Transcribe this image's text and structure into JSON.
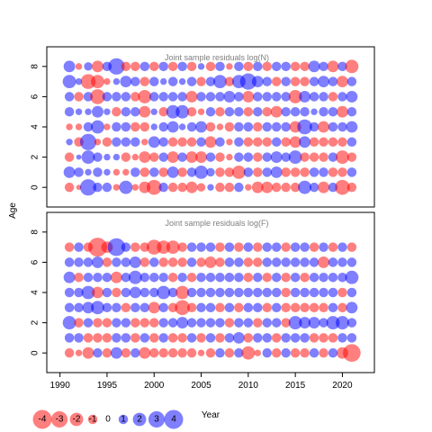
{
  "chart_data": {
    "type": "scatter",
    "subtype": "bubble",
    "xlabel": "Year",
    "ylabel": "Age",
    "xlim": [
      1988.6,
      2023.4
    ],
    "ylim": [
      -1.3,
      9.3
    ],
    "x_ticks": [
      "1990",
      "1995",
      "2000",
      "2005",
      "2010",
      "2015",
      "2020"
    ],
    "y_ticks": [
      "0",
      "2",
      "4",
      "6",
      "8"
    ],
    "years": [
      1991,
      1992,
      1993,
      1994,
      1995,
      1996,
      1997,
      1998,
      1999,
      2000,
      2001,
      2002,
      2003,
      2004,
      2005,
      2006,
      2007,
      2008,
      2009,
      2010,
      2011,
      2012,
      2013,
      2014,
      2015,
      2016,
      2017,
      2018,
      2019,
      2020,
      2021
    ],
    "colors": {
      "positive": "#0000ff",
      "negative": "#ff0000",
      "fill_alpha": 0.5
    },
    "panels": [
      {
        "title": "Joint sample residuals log(N)",
        "ages": [
          0,
          1,
          2,
          3,
          4,
          5,
          6,
          7,
          8
        ],
        "residuals": [
          [
            -1.0,
            1.5,
            -1.0,
            0.5,
            -0.5,
            1.0,
            1.0,
            2.0,
            1.5
          ],
          [
            -0.3,
            1.0,
            0.3,
            -1.0,
            -0.5,
            0.5,
            -1.0,
            0.5,
            -0.5
          ],
          [
            3.0,
            0.5,
            2.0,
            3.0,
            1.0,
            0.5,
            1.0,
            -2.5,
            0.8
          ],
          [
            1.0,
            1.0,
            1.0,
            -0.5,
            2.0,
            1.5,
            -2.5,
            -2.0,
            -1.5
          ],
          [
            1.0,
            0.5,
            0.5,
            -1.0,
            -0.5,
            0.5,
            1.0,
            -0.5,
            1.0
          ],
          [
            -0.5,
            -0.5,
            0.5,
            1.0,
            1.0,
            -1.0,
            1.0,
            0.5,
            3.0
          ],
          [
            2.0,
            -0.5,
            -1.0,
            1.0,
            1.0,
            1.0,
            1.0,
            1.5,
            -1.0
          ],
          [
            -0.5,
            1.0,
            -0.5,
            1.0,
            -1.0,
            1.0,
            -1.0,
            1.0,
            -1.0
          ],
          [
            -1.5,
            -1.0,
            -1.5,
            -0.5,
            -1.0,
            -1.5,
            -2.0,
            -1.0,
            1.0
          ],
          [
            -2.5,
            1.0,
            -1.0,
            1.5,
            0.5,
            0.5,
            1.0,
            1.0,
            -1.0
          ],
          [
            1.0,
            -1.0,
            1.0,
            1.0,
            1.0,
            -1.0,
            1.0,
            0.5,
            1.0
          ],
          [
            -1.0,
            1.5,
            -1.5,
            -1.0,
            1.5,
            2.0,
            1.0,
            1.0,
            -1.0
          ],
          [
            -1.0,
            -1.0,
            1.0,
            -1.0,
            0.5,
            2.0,
            1.0,
            0.5,
            1.0
          ],
          [
            -1.5,
            1.0,
            -1.5,
            -1.0,
            1.0,
            -1.0,
            -1.5,
            1.0,
            -1.0
          ],
          [
            -0.8,
            2.0,
            -1.5,
            1.0,
            1.5,
            -0.5,
            1.0,
            -1.0,
            0.5
          ],
          [
            0.5,
            0.8,
            1.0,
            -1.5,
            -1.0,
            1.0,
            1.0,
            1.0,
            -1.0
          ],
          [
            -1.0,
            -1.0,
            -1.0,
            1.0,
            -0.5,
            -1.0,
            1.0,
            2.0,
            1.0
          ],
          [
            -1.0,
            -1.0,
            -0.5,
            -0.5,
            -1.0,
            1.0,
            1.5,
            -1.0,
            -0.5
          ],
          [
            1.0,
            -2.0,
            1.0,
            1.0,
            1.0,
            1.0,
            1.0,
            2.0,
            1.0
          ],
          [
            -0.5,
            1.0,
            1.0,
            -1.0,
            1.0,
            -1.0,
            -1.5,
            3.0,
            -1.0
          ],
          [
            -1.5,
            -1.0,
            -1.0,
            -1.0,
            -1.0,
            1.0,
            1.0,
            1.5,
            1.0
          ],
          [
            -1.5,
            1.0,
            1.0,
            -1.0,
            1.0,
            -1.0,
            1.0,
            1.0,
            -1.0
          ],
          [
            -1.0,
            1.5,
            1.5,
            1.0,
            1.0,
            -1.5,
            1.0,
            -1.0,
            1.0
          ],
          [
            -1.0,
            -1.0,
            1.0,
            -1.0,
            1.0,
            1.0,
            1.0,
            1.0,
            1.0
          ],
          [
            -1.0,
            -1.0,
            2.0,
            -1.5,
            -1.5,
            1.0,
            -2.0,
            -1.0,
            -1.0
          ],
          [
            2.0,
            -1.0,
            -1.0,
            1.5,
            2.5,
            1.0,
            1.5,
            -1.0,
            -1.0
          ],
          [
            1.0,
            1.0,
            -1.0,
            -1.0,
            1.0,
            0.5,
            1.0,
            1.0,
            1.5
          ],
          [
            -1.5,
            1.0,
            -1.0,
            -1.0,
            -1.5,
            1.0,
            1.0,
            1.5,
            1.0
          ],
          [
            1.0,
            -1.0,
            1.0,
            -1.0,
            1.0,
            1.0,
            -1.0,
            1.0,
            -1.5
          ],
          [
            -2.5,
            -1.0,
            -2.0,
            -1.0,
            1.0,
            -1.5,
            1.0,
            -1.5,
            1.0
          ],
          [
            -1.0,
            1.0,
            -1.0,
            1.0,
            1.5,
            1.0,
            1.5,
            1.0,
            -2.0
          ]
        ]
      },
      {
        "title": "Joint sample residuals log(F)",
        "ages": [
          0,
          1,
          2,
          3,
          4,
          5,
          6,
          7
        ],
        "residuals": [
          [
            -1.0,
            1.0,
            2.0,
            1.0,
            1.0,
            1.5,
            1.0,
            -1.0
          ],
          [
            -0.5,
            1.0,
            -1.0,
            1.0,
            1.0,
            -1.0,
            1.0,
            1.0
          ],
          [
            -1.5,
            -1.0,
            1.0,
            1.5,
            2.0,
            1.0,
            1.0,
            -1.0
          ],
          [
            1.0,
            -1.0,
            -1.0,
            2.0,
            -1.5,
            1.0,
            1.5,
            -4.0
          ],
          [
            -1.0,
            -1.0,
            -1.0,
            1.0,
            1.0,
            1.0,
            -1.0,
            -1.5
          ],
          [
            1.5,
            1.0,
            1.0,
            1.0,
            -1.0,
            -1.5,
            1.0,
            3.5
          ],
          [
            -1.0,
            1.0,
            1.0,
            -1.0,
            1.0,
            1.0,
            1.0,
            1.0
          ],
          [
            1.0,
            -1.0,
            -1.0,
            1.0,
            1.5,
            2.0,
            1.5,
            -1.0
          ],
          [
            -1.5,
            1.0,
            -1.0,
            1.0,
            1.0,
            1.0,
            -1.0,
            -1.0
          ],
          [
            -1.0,
            -1.0,
            -1.0,
            -1.5,
            1.0,
            1.0,
            1.0,
            -2.5
          ],
          [
            -1.0,
            1.0,
            1.0,
            1.0,
            2.0,
            1.0,
            -1.0,
            -2.0
          ],
          [
            -1.0,
            -1.0,
            1.0,
            -1.0,
            1.0,
            -1.0,
            -1.0,
            -2.0
          ],
          [
            -1.0,
            -1.0,
            1.5,
            -2.5,
            -2.0,
            1.0,
            -1.0,
            -1.0
          ],
          [
            -1.0,
            1.0,
            1.0,
            -1.0,
            1.0,
            -1.0,
            1.0,
            1.0
          ],
          [
            -0.5,
            -1.0,
            1.0,
            1.0,
            1.0,
            1.0,
            -1.0,
            1.0
          ],
          [
            -1.0,
            1.0,
            1.0,
            1.0,
            1.0,
            1.0,
            -1.5,
            1.0
          ],
          [
            1.0,
            -1.0,
            1.0,
            -1.0,
            1.0,
            1.0,
            -1.0,
            -1.0
          ],
          [
            -1.0,
            1.0,
            -1.0,
            1.0,
            1.0,
            1.0,
            1.0,
            1.0
          ],
          [
            1.0,
            1.5,
            1.0,
            -1.0,
            1.0,
            1.0,
            1.0,
            -1.0
          ],
          [
            -2.0,
            -1.0,
            1.0,
            1.0,
            1.0,
            -1.0,
            -1.0,
            1.0
          ],
          [
            -0.5,
            1.0,
            -1.0,
            1.0,
            1.0,
            1.0,
            -1.0,
            -1.0
          ],
          [
            1.0,
            1.0,
            1.0,
            -1.0,
            1.0,
            -1.0,
            1.0,
            1.0
          ],
          [
            -1.0,
            -1.0,
            1.0,
            1.0,
            1.0,
            1.0,
            1.0,
            1.0
          ],
          [
            1.0,
            1.0,
            -1.0,
            -1.0,
            -1.0,
            -1.0,
            1.0,
            -1.0
          ],
          [
            -1.0,
            1.0,
            2.0,
            -1.0,
            1.0,
            1.0,
            1.0,
            1.0
          ],
          [
            -1.0,
            1.0,
            1.5,
            -1.0,
            1.0,
            -1.0,
            1.0,
            1.0
          ],
          [
            1.0,
            -1.0,
            1.5,
            -1.0,
            1.0,
            1.0,
            1.0,
            -1.0
          ],
          [
            -1.0,
            -1.0,
            1.0,
            -1.0,
            1.0,
            1.0,
            -1.5,
            1.0
          ],
          [
            1.0,
            -1.0,
            2.0,
            1.0,
            1.0,
            1.0,
            1.0,
            -1.0
          ],
          [
            -1.5,
            1.0,
            2.0,
            -1.0,
            -1.0,
            1.0,
            1.0,
            1.0
          ],
          [
            -3.5,
            1.0,
            1.0,
            1.5,
            1.0,
            2.0,
            1.0,
            -1.0
          ]
        ]
      }
    ],
    "legend": {
      "placement": "bottom-left",
      "values": [
        -4,
        -3,
        -2,
        -1,
        0,
        1,
        2,
        3,
        4
      ],
      "labels": [
        "-4",
        "-3",
        "-2",
        "-1",
        "0",
        "1",
        "2",
        "3",
        "4"
      ]
    }
  }
}
